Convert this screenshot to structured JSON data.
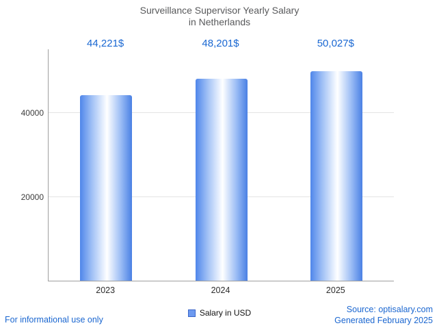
{
  "title": {
    "line1": "Surveillance Supervisor Yearly Salary",
    "line2": "in Netherlands"
  },
  "chart_data": {
    "type": "bar",
    "title": "Surveillance Supervisor Yearly Salary in Netherlands",
    "categories": [
      "2023",
      "2024",
      "2025"
    ],
    "values": [
      44221,
      48201,
      50027
    ],
    "value_labels": [
      "44,221$",
      "48,201$",
      "50,027$"
    ],
    "xlabel": "",
    "ylabel": "",
    "ylim": [
      0,
      55000
    ],
    "yticks": [
      {
        "value": 20000,
        "label": "20000"
      },
      {
        "value": 40000,
        "label": "40000"
      }
    ],
    "grid": true,
    "legend": {
      "label": "Salary in USD",
      "position": "bottom-center"
    }
  },
  "footer": {
    "left": "For informational use only",
    "right_line1": "Source: optisalary.com",
    "right_line2": "Generated February 2025"
  },
  "colors": {
    "title_text": "#58595b",
    "value_text": "#1967d2",
    "footer_text": "#1a66d0",
    "bar_edge_blue": "#4f86ea",
    "bar_center": "#ffffff",
    "axis": "#9e9e9e",
    "gridline": "#e3e3e3"
  }
}
